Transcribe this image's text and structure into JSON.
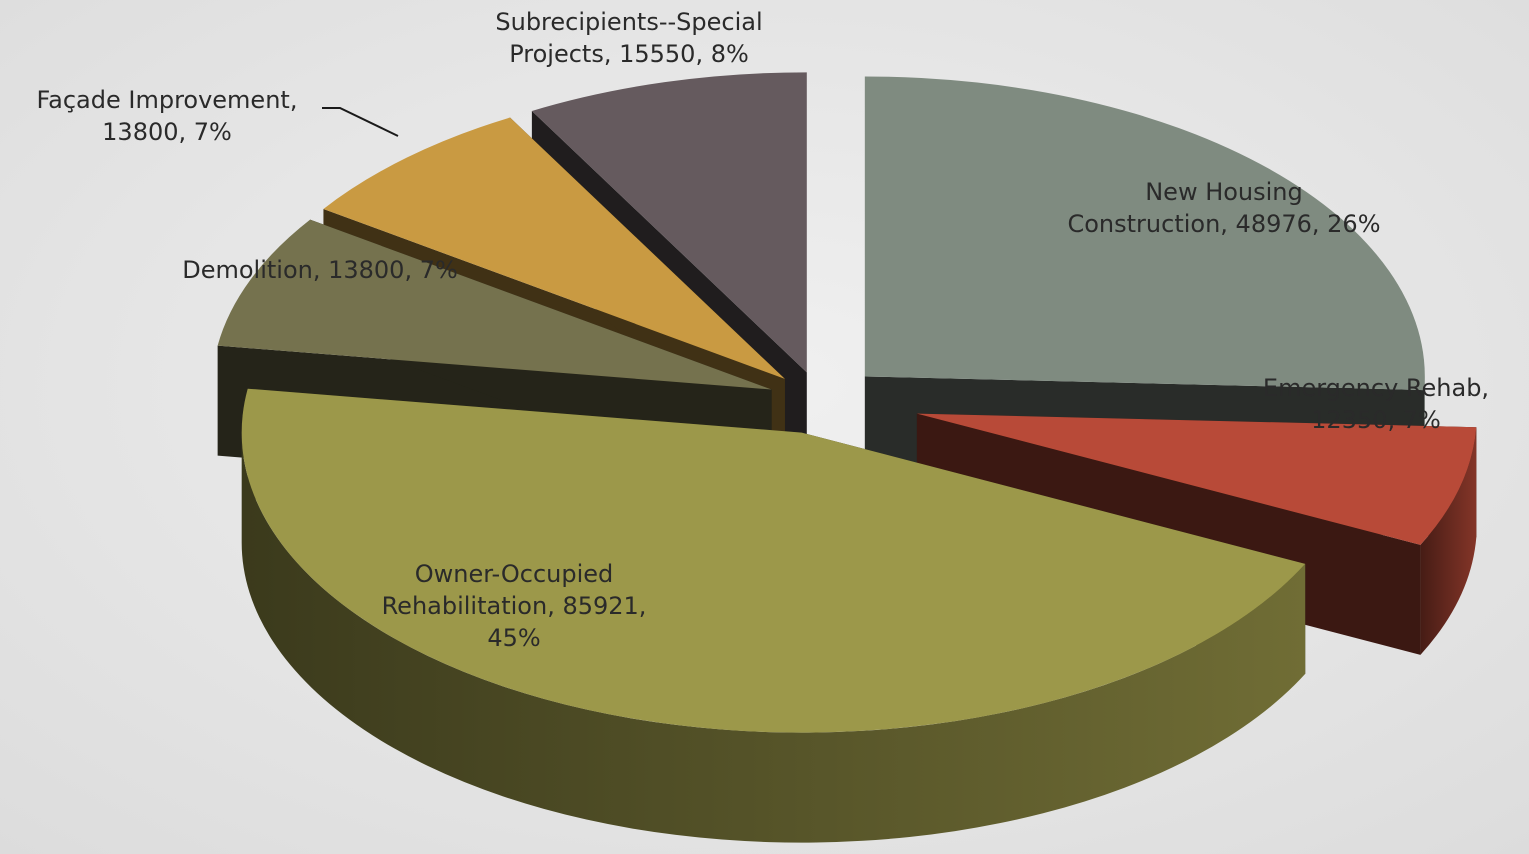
{
  "chart_data": {
    "type": "pie",
    "title": "",
    "exploded": true,
    "three_d": true,
    "slices": [
      {
        "category": "New Housing Construction",
        "value": 48976,
        "percent": "26%",
        "color": "#7f8b80",
        "label_lines": [
          "New Housing",
          "Construction, 48976, 26%"
        ]
      },
      {
        "category": "Emergency Rehab",
        "value": 12350,
        "percent": "7%",
        "color": "#b84a38",
        "label_lines": [
          "Emergency Rehab,",
          "12350, 7%"
        ]
      },
      {
        "category": "Owner-Occupied Rehabilitation",
        "value": 85921,
        "percent": "45%",
        "color": "#9c984a",
        "label_lines": [
          "Owner-Occupied",
          "Rehabilitation, 85921,",
          "45%"
        ]
      },
      {
        "category": "Demolition",
        "value": 13800,
        "percent": "7%",
        "color": "#75724e",
        "label_lines": [
          "Demolition, 13800, 7%"
        ]
      },
      {
        "category": "Façade Improvement",
        "value": 13800,
        "percent": "7%",
        "color": "#c99a42",
        "label_lines": [
          "Façade Improvement,",
          "13800, 7%"
        ]
      },
      {
        "category": "Subrecipients--Special Projects",
        "value": 15550,
        "percent": "8%",
        "color": "#655a5e",
        "label_lines": [
          "Subrecipients--Special",
          "Projects, 15550, 8%"
        ]
      }
    ]
  }
}
